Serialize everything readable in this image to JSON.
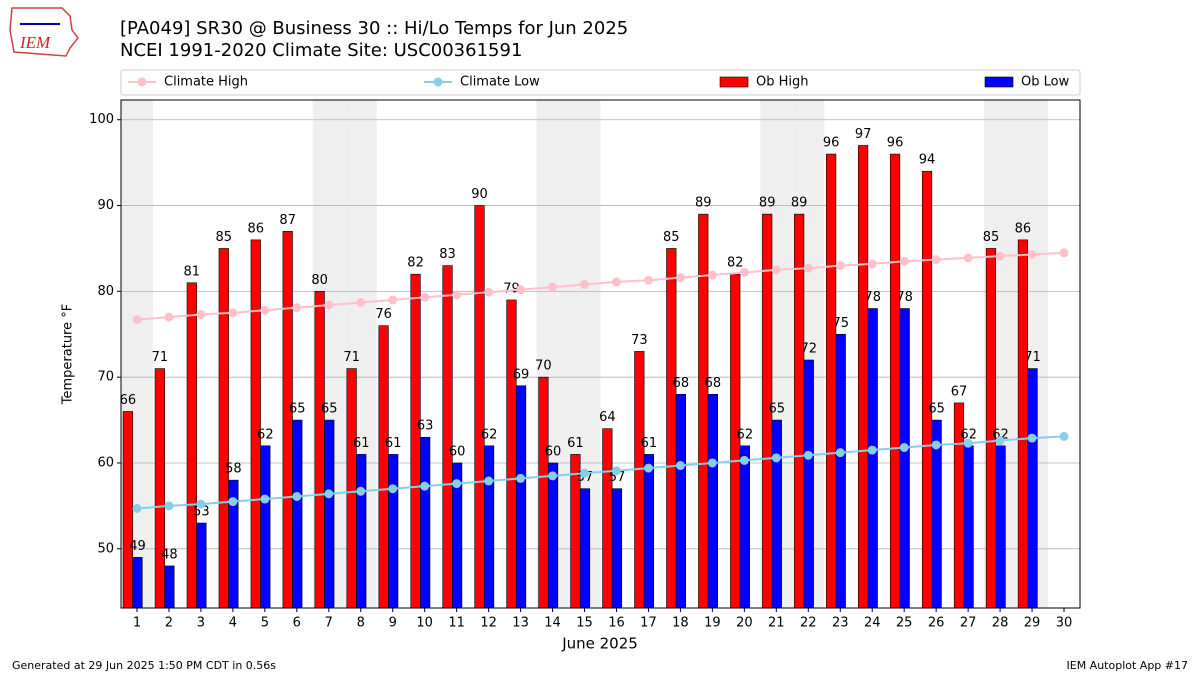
{
  "chart_data": {
    "type": "bar_line",
    "title": "[PA049] SR30 @ Business 30  :: Hi/Lo Temps for Jun 2025",
    "subtitle": "NCEI 1991-2020 Climate Site: USC00361591",
    "xlabel": "June 2025",
    "ylabel": "Temperature °F",
    "footer_left": "Generated at 29 Jun 2025 1:50 PM CDT in 0.56s",
    "footer_right": "IEM Autoplot App #17",
    "logo": "IEM",
    "x": [
      1,
      2,
      3,
      4,
      5,
      6,
      7,
      8,
      9,
      10,
      11,
      12,
      13,
      14,
      15,
      16,
      17,
      18,
      19,
      20,
      21,
      22,
      23,
      24,
      25,
      26,
      27,
      28,
      29,
      30
    ],
    "xlim": [
      0.5,
      30.5
    ],
    "xticks": [
      1,
      2,
      3,
      4,
      5,
      6,
      7,
      8,
      9,
      10,
      11,
      12,
      13,
      14,
      15,
      16,
      17,
      18,
      19,
      20,
      21,
      22,
      23,
      24,
      25,
      26,
      27,
      28,
      29,
      30
    ],
    "ylim": [
      43.1,
      102.3
    ],
    "yticks": [
      50,
      60,
      70,
      80,
      90,
      100
    ],
    "grid": true,
    "weekend_days": [
      1,
      7,
      8,
      14,
      15,
      21,
      22,
      28,
      29
    ],
    "series": [
      {
        "name": "Climate High",
        "color": "#ffc0cb",
        "kind": "line",
        "values": [
          76.7,
          77.0,
          77.3,
          77.5,
          77.8,
          78.1,
          78.4,
          78.7,
          79.0,
          79.3,
          79.6,
          79.9,
          80.2,
          80.5,
          80.8,
          81.1,
          81.3,
          81.6,
          81.9,
          82.2,
          82.5,
          82.7,
          83.0,
          83.2,
          83.5,
          83.7,
          83.9,
          84.1,
          84.3,
          84.5
        ]
      },
      {
        "name": "Climate Low",
        "color": "#87ceeb",
        "kind": "line",
        "values": [
          54.7,
          55.0,
          55.2,
          55.5,
          55.8,
          56.1,
          56.4,
          56.7,
          57.0,
          57.3,
          57.6,
          57.9,
          58.2,
          58.5,
          58.8,
          59.1,
          59.4,
          59.7,
          60.0,
          60.3,
          60.6,
          60.9,
          61.2,
          61.5,
          61.8,
          62.1,
          62.3,
          62.6,
          62.9,
          63.1
        ]
      },
      {
        "name": "Ob High",
        "color": "#ff0000",
        "kind": "bar",
        "values": [
          66,
          71,
          81,
          85,
          86,
          87,
          80,
          71,
          76,
          82,
          83,
          90,
          79,
          70,
          61,
          64,
          73,
          85,
          89,
          82,
          89,
          89,
          96,
          97,
          96,
          94,
          67,
          85,
          86,
          null
        ]
      },
      {
        "name": "Ob Low",
        "color": "#0000ff",
        "kind": "bar",
        "values": [
          49,
          48,
          53,
          58,
          62,
          65,
          65,
          61,
          61,
          63,
          60,
          62,
          69,
          60,
          57,
          57,
          61,
          68,
          68,
          62,
          65,
          72,
          75,
          78,
          78,
          65,
          62,
          62,
          71,
          null
        ]
      }
    ]
  }
}
